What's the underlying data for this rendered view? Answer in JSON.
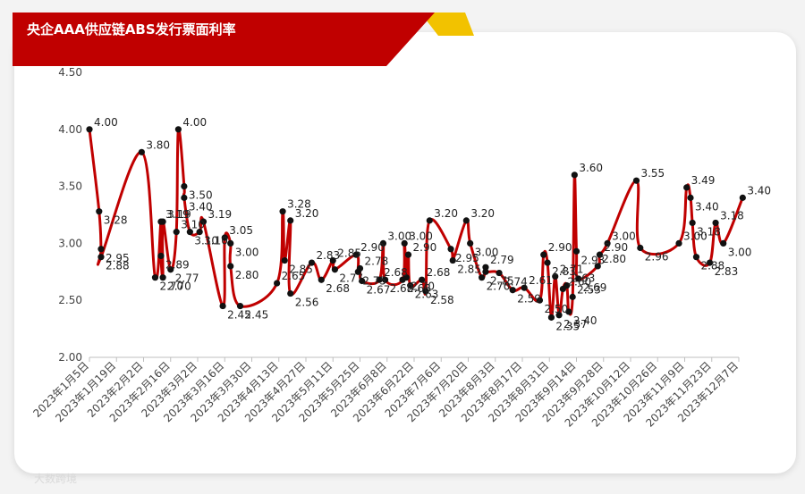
{
  "chart_data": {
    "type": "line",
    "title": "央企AAA供应链ABS发行票面利率",
    "xlabel": "",
    "ylabel": "",
    "ylim": [
      2.0,
      4.5
    ],
    "yticks": [
      "2.00",
      "2.50",
      "3.00",
      "3.50",
      "4.00",
      "4.50"
    ],
    "x_ticks": [
      "2023年1月5日",
      "2023年1月19日",
      "2023年2月2日",
      "2023年2月16日",
      "2023年3月2日",
      "2023年3月16日",
      "2023年3月30日",
      "2023年4月13日",
      "2023年4月27日",
      "2023年5月11日",
      "2023年5月25日",
      "2023年6月8日",
      "2023年6月22日",
      "2023年7月6日",
      "2023年7月20日",
      "2023年8月3日",
      "2023年8月17日",
      "2023年8月31日",
      "2023年9月14日",
      "2023年9月28日",
      "2023年10月12日",
      "2023年10月26日",
      "2023年11月9日",
      "2023年11月23日",
      "2023年12月7日"
    ],
    "series_color": "#c00000",
    "points": [
      {
        "x": "2023-01-05",
        "y": 4.0,
        "label": "4.00"
      },
      {
        "x": "2023-01-10",
        "y": 3.28,
        "label": "3.28"
      },
      {
        "x": "2023-01-11",
        "y": 2.95,
        "label": "2.95"
      },
      {
        "x": "2023-01-11",
        "y": 2.88,
        "label": "2.88"
      },
      {
        "x": "2023-02-01",
        "y": 3.8,
        "label": "3.80"
      },
      {
        "x": "2023-02-08",
        "y": 2.7,
        "label": "2.70"
      },
      {
        "x": "2023-02-11",
        "y": 3.19,
        "label": "3.19"
      },
      {
        "x": "2023-02-11",
        "y": 2.89,
        "label": "2.89"
      },
      {
        "x": "2023-02-12",
        "y": 2.7,
        "label": "2.70"
      },
      {
        "x": "2023-02-12",
        "y": 3.19,
        "label": "3.19"
      },
      {
        "x": "2023-02-16",
        "y": 2.77,
        "label": "2.77"
      },
      {
        "x": "2023-02-19",
        "y": 3.1,
        "label": "3.10"
      },
      {
        "x": "2023-02-20",
        "y": 4.0,
        "label": "4.00"
      },
      {
        "x": "2023-02-23",
        "y": 3.5,
        "label": "3.50"
      },
      {
        "x": "2023-02-23",
        "y": 3.4,
        "label": "3.40"
      },
      {
        "x": "2023-02-26",
        "y": 3.1,
        "label": "3.10"
      },
      {
        "x": "2023-03-03",
        "y": 3.1,
        "label": "3.10"
      },
      {
        "x": "2023-03-05",
        "y": 3.19,
        "label": "3.19"
      },
      {
        "x": "2023-03-15",
        "y": 2.45,
        "label": "2.45"
      },
      {
        "x": "2023-03-16",
        "y": 3.05,
        "label": "3.05"
      },
      {
        "x": "2023-03-19",
        "y": 3.0,
        "label": "3.00"
      },
      {
        "x": "2023-03-19",
        "y": 2.8,
        "label": "2.80"
      },
      {
        "x": "2023-03-24",
        "y": 2.45,
        "label": "2.45"
      },
      {
        "x": "2023-04-12",
        "y": 2.65,
        "label": "2.65"
      },
      {
        "x": "2023-04-15",
        "y": 3.28,
        "label": "3.28"
      },
      {
        "x": "2023-04-16",
        "y": 2.85,
        "label": "2.85"
      },
      {
        "x": "2023-04-19",
        "y": 3.2,
        "label": "3.20"
      },
      {
        "x": "2023-04-19",
        "y": 2.56,
        "label": "2.56"
      },
      {
        "x": "2023-04-30",
        "y": 2.83,
        "label": "2.83"
      },
      {
        "x": "2023-05-05",
        "y": 2.68,
        "label": "2.68"
      },
      {
        "x": "2023-05-11",
        "y": 2.85,
        "label": "2.85"
      },
      {
        "x": "2023-05-12",
        "y": 2.77,
        "label": "2.77"
      },
      {
        "x": "2023-05-23",
        "y": 2.9,
        "label": "2.90"
      },
      {
        "x": "2023-05-24",
        "y": 2.75,
        "label": "2.75"
      },
      {
        "x": "2023-05-25",
        "y": 2.78,
        "label": "2.78"
      },
      {
        "x": "2023-05-26",
        "y": 2.67,
        "label": "2.67"
      },
      {
        "x": "2023-06-04",
        "y": 2.68,
        "label": "2.68"
      },
      {
        "x": "2023-06-06",
        "y": 3.0,
        "label": "3.00"
      },
      {
        "x": "2023-06-07",
        "y": 2.68,
        "label": "2.68"
      },
      {
        "x": "2023-06-16",
        "y": 2.68,
        "label": "2.68"
      },
      {
        "x": "2023-06-17",
        "y": 3.0,
        "label": "3.00"
      },
      {
        "x": "2023-06-18",
        "y": 2.7,
        "label": "2.70"
      },
      {
        "x": "2023-06-19",
        "y": 2.9,
        "label": "2.90"
      },
      {
        "x": "2023-06-20",
        "y": 2.63,
        "label": "2.63"
      },
      {
        "x": "2023-06-26",
        "y": 2.68,
        "label": "2.68"
      },
      {
        "x": "2023-06-28",
        "y": 2.58,
        "label": "2.58"
      },
      {
        "x": "2023-06-30",
        "y": 3.2,
        "label": "3.20"
      },
      {
        "x": "2023-07-11",
        "y": 2.95,
        "label": "2.95"
      },
      {
        "x": "2023-07-12",
        "y": 2.85,
        "label": "2.85"
      },
      {
        "x": "2023-07-19",
        "y": 3.2,
        "label": "3.20"
      },
      {
        "x": "2023-07-21",
        "y": 3.0,
        "label": "3.00"
      },
      {
        "x": "2023-07-27",
        "y": 2.7,
        "label": "2.70"
      },
      {
        "x": "2023-07-29",
        "y": 2.79,
        "label": "2.79"
      },
      {
        "x": "2023-07-29",
        "y": 2.75,
        "label": "2.75"
      },
      {
        "x": "2023-08-05",
        "y": 2.74,
        "label": "2.74"
      },
      {
        "x": "2023-08-12",
        "y": 2.59,
        "label": "2.59"
      },
      {
        "x": "2023-08-18",
        "y": 2.61,
        "label": "2.61"
      },
      {
        "x": "2023-08-26",
        "y": 2.5,
        "label": "2.50"
      },
      {
        "x": "2023-08-28",
        "y": 2.9,
        "label": "2.90"
      },
      {
        "x": "2023-08-30",
        "y": 2.83,
        "label": "2.83"
      },
      {
        "x": "2023-09-01",
        "y": 2.35,
        "label": "2.35"
      },
      {
        "x": "2023-09-03",
        "y": 2.71,
        "label": "2.71"
      },
      {
        "x": "2023-09-05",
        "y": 2.37,
        "label": "2.37"
      },
      {
        "x": "2023-09-07",
        "y": 2.6,
        "label": "2.60"
      },
      {
        "x": "2023-09-09",
        "y": 2.63,
        "label": "2.63"
      },
      {
        "x": "2023-09-10",
        "y": 2.4,
        "label": "2.40"
      },
      {
        "x": "2023-09-12",
        "y": 2.53,
        "label": "2.53"
      },
      {
        "x": "2023-09-13",
        "y": 3.6,
        "label": "3.60"
      },
      {
        "x": "2023-09-14",
        "y": 2.93,
        "label": "2.93"
      },
      {
        "x": "2023-09-15",
        "y": 2.69,
        "label": "2.69"
      },
      {
        "x": "2023-09-25",
        "y": 2.8,
        "label": "2.80"
      },
      {
        "x": "2023-09-26",
        "y": 2.9,
        "label": "2.90"
      },
      {
        "x": "2023-09-30",
        "y": 3.0,
        "label": "3.00"
      },
      {
        "x": "2023-10-15",
        "y": 3.55,
        "label": "3.55"
      },
      {
        "x": "2023-10-17",
        "y": 2.96,
        "label": "2.96"
      },
      {
        "x": "2023-11-06",
        "y": 3.0,
        "label": "3.00"
      },
      {
        "x": "2023-11-10",
        "y": 3.49,
        "label": "3.49"
      },
      {
        "x": "2023-11-12",
        "y": 3.4,
        "label": "3.40"
      },
      {
        "x": "2023-11-13",
        "y": 3.18,
        "label": "3.18"
      },
      {
        "x": "2023-11-15",
        "y": 2.88,
        "label": "2.88"
      },
      {
        "x": "2023-11-22",
        "y": 2.83,
        "label": "2.83"
      },
      {
        "x": "2023-11-25",
        "y": 3.18,
        "label": "3.18"
      },
      {
        "x": "2023-11-29",
        "y": 3.0,
        "label": "3.00"
      },
      {
        "x": "2023-12-09",
        "y": 3.4,
        "label": "3.40"
      }
    ]
  },
  "watermark": "大数跨境"
}
